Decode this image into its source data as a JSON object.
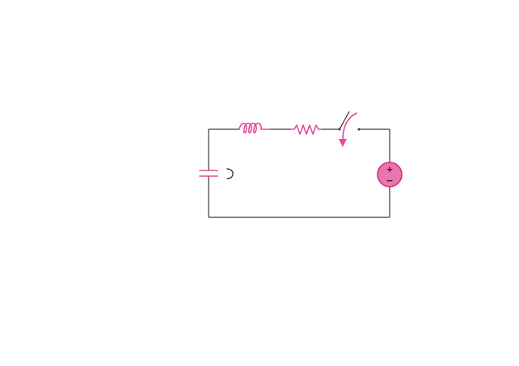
{
  "diagram": {
    "type": "series RLC circuit with switch and voltage source",
    "components": [
      {
        "name": "capacitor",
        "icon": "capacitor-icon"
      },
      {
        "name": "inductor",
        "icon": "inductor-icon"
      },
      {
        "name": "resistor",
        "icon": "resistor-icon"
      },
      {
        "name": "switch",
        "icon": "switch-icon"
      },
      {
        "name": "voltage-source",
        "icon": "voltage-source-icon"
      }
    ],
    "source": {
      "plus_sign": "+",
      "minus_sign": "−"
    },
    "colors": {
      "wire": "#3a3a3a",
      "component": "#e5489a",
      "source_fill": "#ec74ad",
      "background": "#ffffff"
    }
  }
}
